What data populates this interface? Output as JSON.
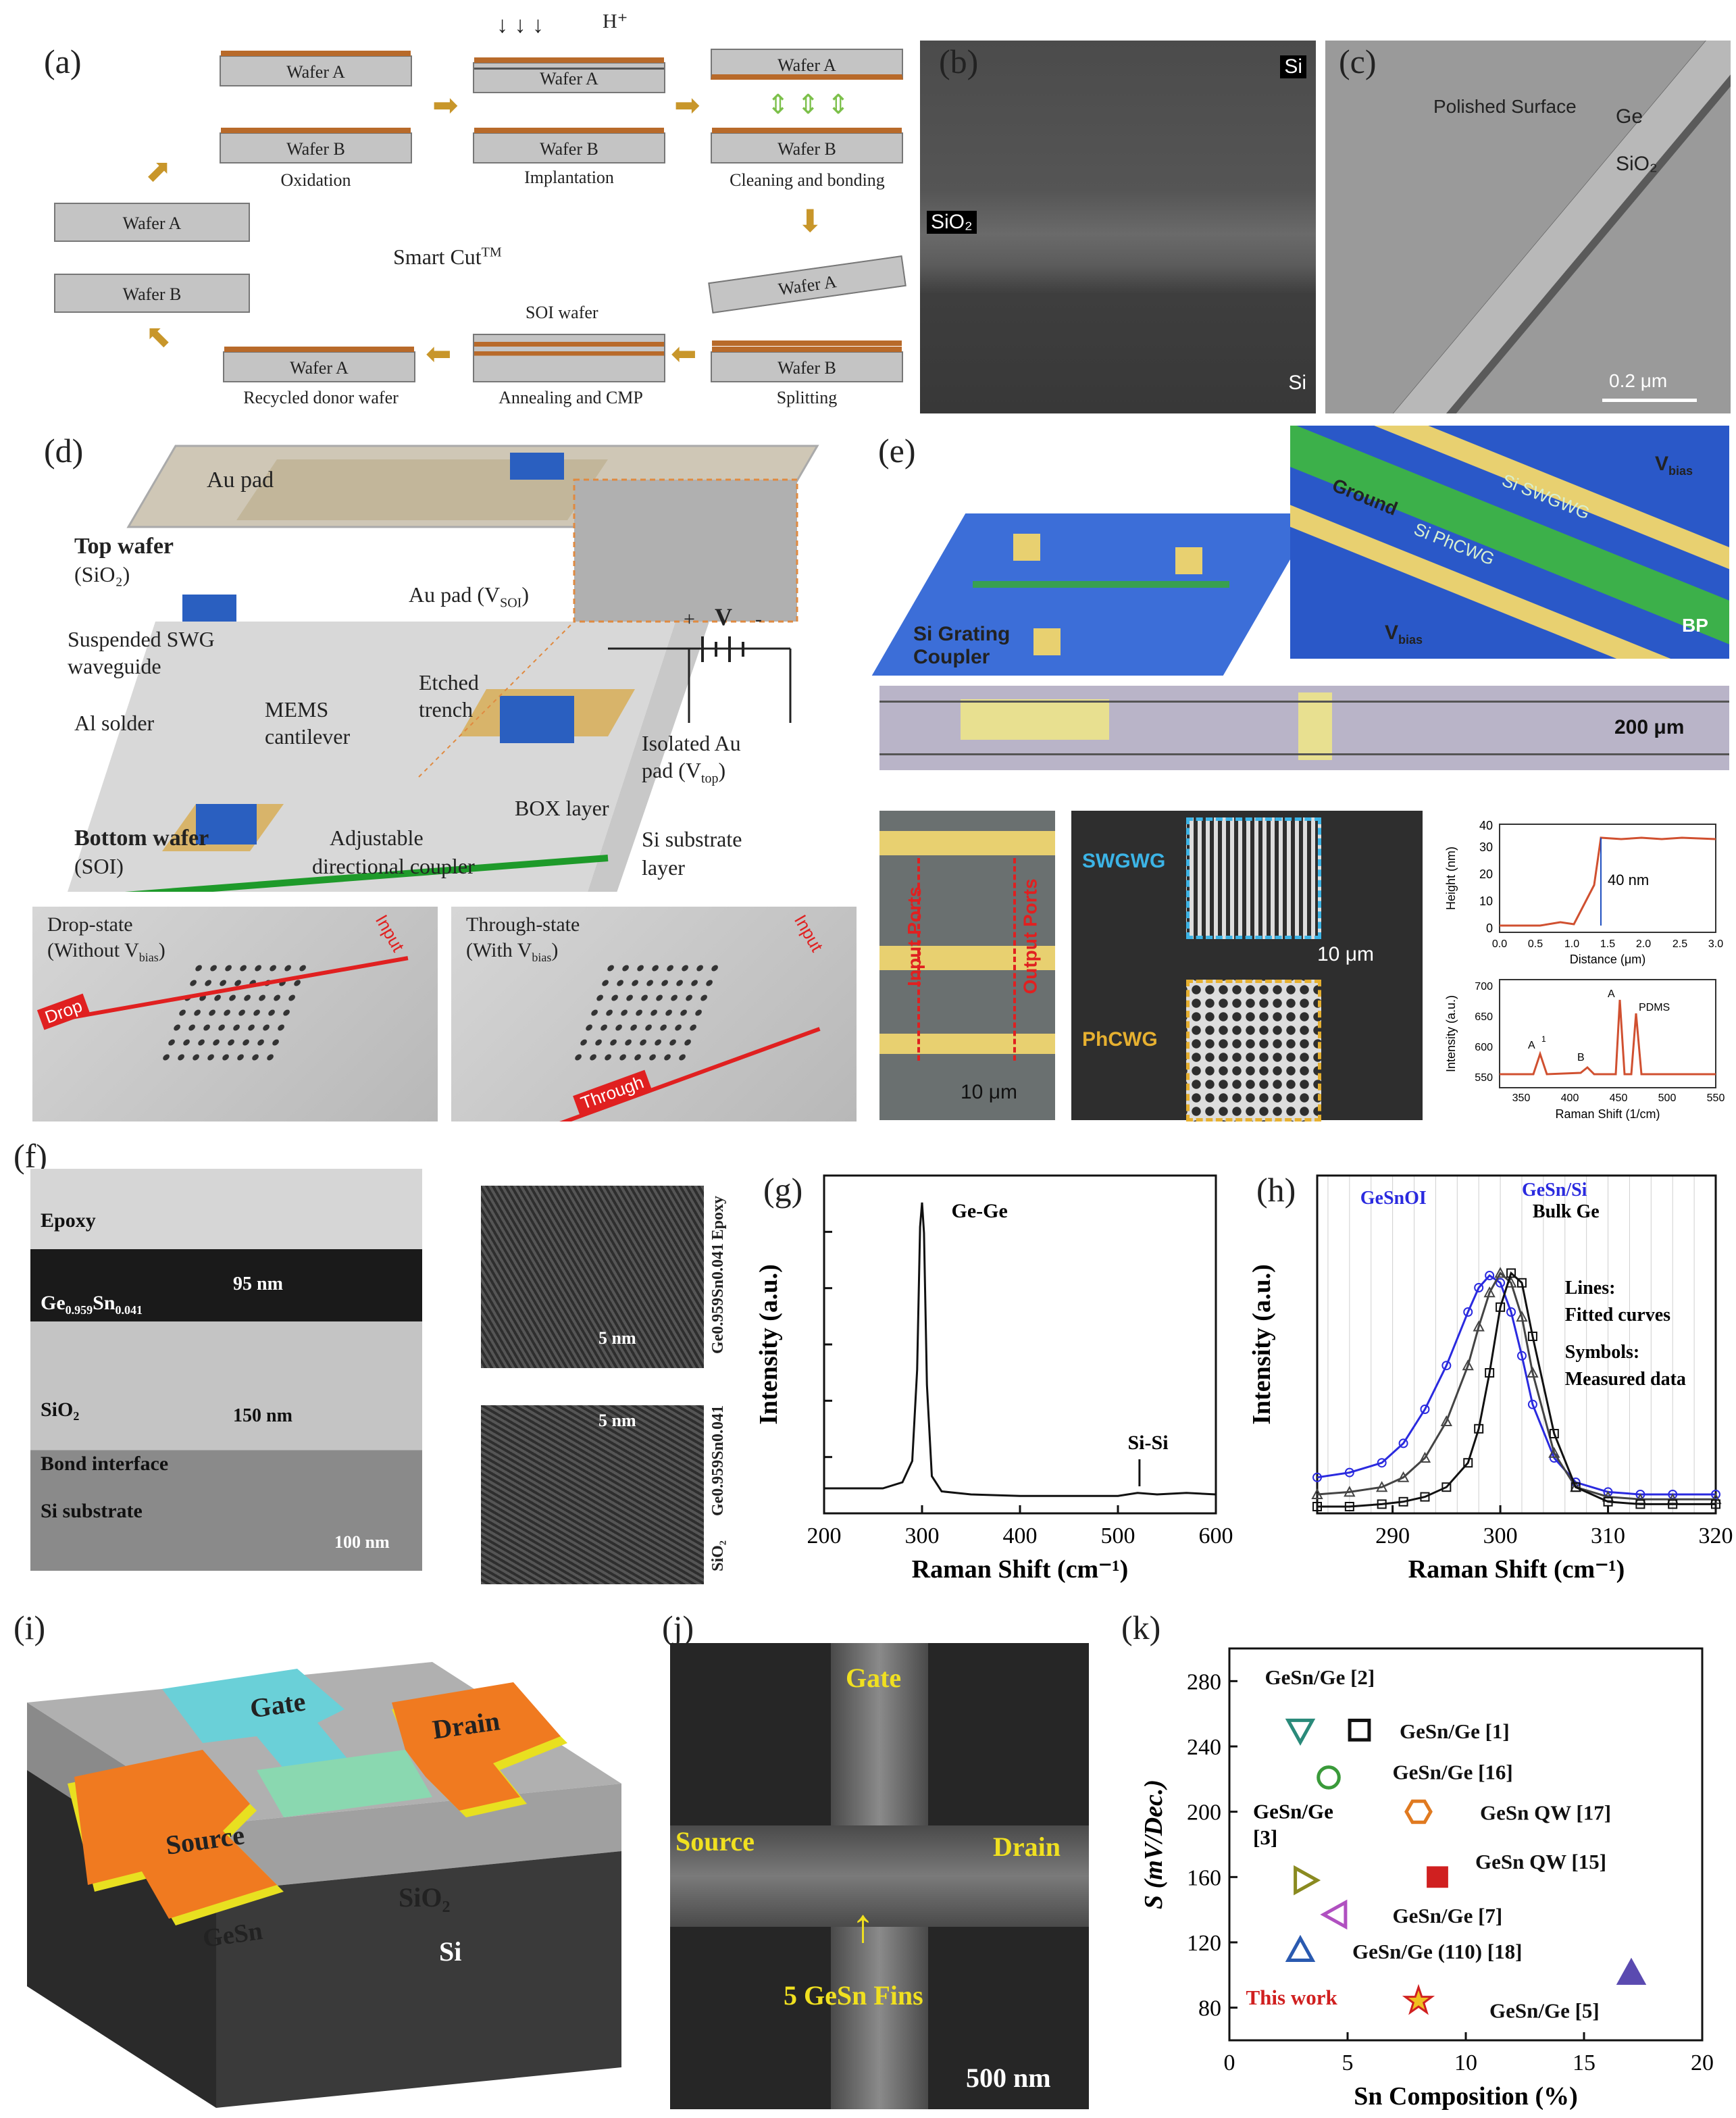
{
  "panels": {
    "a": "(a)",
    "b": "(b)",
    "c": "(c)",
    "d": "(d)",
    "e": "(e)",
    "f": "(f)",
    "g": "(g)",
    "h": "(h)",
    "i": "(i)",
    "j": "(j)",
    "k": "(k)"
  },
  "a": {
    "title": "Smart Cut",
    "tm": "TM",
    "wafer_a": "Wafer A",
    "wafer_b": "Wafer B",
    "h_plus": "H⁺",
    "steps": [
      "Oxidation",
      "Implantation",
      "Cleaning and bonding",
      "Splitting",
      "Annealing and CMP",
      "Recycled donor wafer"
    ],
    "soi": "SOI wafer"
  },
  "b": {
    "si_top": "Si",
    "sio2": "SiO₂",
    "si_bottom": "Si"
  },
  "c": {
    "polished": "Polished Surface",
    "ge": "Ge",
    "sio2": "SiO₂",
    "scale": "0.2 μm"
  },
  "d": {
    "au_pad": "Au pad",
    "top_wafer": "Top wafer",
    "top_wafer_sub": "(SiO₂)",
    "suspended": "Suspended SWG",
    "waveguide": "waveguide",
    "al_solder": "Al solder",
    "mems": "MEMS",
    "cantilever": "cantilever",
    "bottom_wafer": "Bottom wafer",
    "bottom_sub": "(SOI)",
    "adjustable": "Adjustable",
    "coupler": "directional coupler",
    "au_pad_vsoi": "Au pad (V",
    "vsoi_sub": "SOI",
    "etched": "Etched",
    "trench": "trench",
    "isolated": "Isolated Au",
    "pad_vtop": "pad (V",
    "vtop_sub": "top",
    "box": "BOX layer",
    "si_sub": "Si substrate",
    "layer": "layer",
    "v": "V",
    "plus": "+",
    "minus": "-",
    "drop_state": "Drop-state",
    "without": "(Without V",
    "bias": "bias",
    "through_state": "Through-state",
    "with": "(With V",
    "input": "Input",
    "drop": "Drop",
    "through": "Through"
  },
  "e": {
    "grating": "Si Grating",
    "coupler": "Coupler",
    "ground": "Ground",
    "vbias": "V",
    "bias": "bias",
    "swgwg": "Si SWGWG",
    "phcwg": "Si PhCWG",
    "bp": "BP",
    "scale200": "200 μm",
    "input_ports": "Input Ports",
    "output_ports": "Output Ports",
    "scale10a": "10 μm",
    "swgwg_lbl": "SWGWG",
    "phcwg_lbl": "PhCWG",
    "scale10b": "10 μm",
    "height_y": "Height (nm)",
    "height_x": "Distance (μm)",
    "height_ann": "40 nm",
    "height_yticks": [
      "0",
      "10",
      "20",
      "30",
      "40"
    ],
    "height_xticks": [
      "0.0",
      "0.5",
      "1.0",
      "1.5",
      "2.0",
      "2.5",
      "3.0"
    ],
    "raman_y": "Intensity (a.u.)",
    "raman_x": "Raman Shift (1/cm)",
    "raman_yticks": [
      "550",
      "600",
      "650",
      "700"
    ],
    "raman_xticks": [
      "350",
      "400",
      "450",
      "500",
      "550"
    ],
    "peaks": [
      "A",
      "1",
      "g",
      "B",
      "2g",
      "A",
      "2",
      "g",
      "PDMS"
    ]
  },
  "f": {
    "epoxy": "Epoxy",
    "gesn": "Ge",
    "ge_sub": "0.959",
    "sn": "Sn",
    "sn_sub": "0.041",
    "sio2": "SiO₂",
    "bond": "Bond interface",
    "si_sub": "Si substrate",
    "t95": "95 nm",
    "t150": "150 nm",
    "scale": "100 nm",
    "scale5a": "5 nm",
    "scale5b": "5 nm",
    "side_epoxy": "Epoxy",
    "side_gesn": "Ge0.959Sn0.041",
    "side_gesn2": "Ge0.959Sn0.041",
    "side_sio2": "SiO₂"
  },
  "chart_data": [
    {
      "type": "line",
      "title": "",
      "xlabel": "Raman Shift (cm⁻¹)",
      "ylabel": "Intensity (a.u.)",
      "xlim": [
        200,
        600
      ],
      "xticks": [
        "200",
        "300",
        "400",
        "500",
        "600"
      ],
      "annotations": [
        "Ge-Ge",
        "Si-Si"
      ],
      "x": [
        200,
        230,
        260,
        280,
        290,
        295,
        298,
        300,
        302,
        305,
        310,
        320,
        350,
        400,
        450,
        500,
        520,
        540,
        570,
        600
      ],
      "series": [
        {
          "values": [
            0.06,
            0.06,
            0.06,
            0.08,
            0.15,
            0.45,
            0.92,
            1.0,
            0.9,
            0.4,
            0.1,
            0.05,
            0.04,
            0.035,
            0.035,
            0.035,
            0.045,
            0.04,
            0.045,
            0.04
          ]
        }
      ]
    },
    {
      "type": "line",
      "title": "",
      "xlabel": "Raman Shift (cm⁻¹)",
      "ylabel": "Intensity (a.u.)",
      "xlim": [
        283,
        320
      ],
      "xticks": [
        "290",
        "300",
        "310",
        "320"
      ],
      "annotations": [
        "GeSnOI",
        "GeSn/Si",
        "Bulk Ge",
        "Lines:",
        "Fitted curves",
        "Symbols:",
        "Measured data"
      ],
      "x": [
        283,
        286,
        289,
        291,
        293,
        295,
        297,
        298,
        299,
        300,
        301,
        302,
        303,
        305,
        307,
        310,
        313,
        316,
        320
      ],
      "series": [
        {
          "name": "GeSnOI",
          "color": "#2a2adf",
          "values": [
            0.12,
            0.14,
            0.18,
            0.26,
            0.4,
            0.58,
            0.8,
            0.9,
            0.95,
            0.92,
            0.8,
            0.62,
            0.42,
            0.2,
            0.1,
            0.06,
            0.05,
            0.05,
            0.05
          ]
        },
        {
          "name": "GeSn/Si",
          "color": "#444444",
          "values": [
            0.05,
            0.06,
            0.08,
            0.12,
            0.2,
            0.35,
            0.58,
            0.74,
            0.88,
            0.96,
            0.92,
            0.78,
            0.55,
            0.22,
            0.08,
            0.04,
            0.03,
            0.03,
            0.03
          ]
        },
        {
          "name": "Bulk Ge",
          "color": "#111111",
          "values": [
            0.0,
            0.0,
            0.01,
            0.02,
            0.04,
            0.08,
            0.18,
            0.32,
            0.55,
            0.82,
            0.96,
            0.92,
            0.7,
            0.3,
            0.08,
            0.02,
            0.01,
            0.01,
            0.01
          ]
        }
      ]
    },
    {
      "type": "scatter",
      "title": "",
      "xlabel": "Sn Composition (%)",
      "ylabel": "S (mV/Dec.)",
      "xlim": [
        0,
        20
      ],
      "ylim": [
        60,
        300
      ],
      "xticks": [
        "0",
        "5",
        "10",
        "15",
        "20"
      ],
      "yticks": [
        "80",
        "120",
        "160",
        "200",
        "240",
        "280"
      ],
      "points": [
        {
          "label": "GeSn/Ge [2]",
          "x": 3,
          "y": 250,
          "marker": "triangle-down",
          "color": "#2a8a7a"
        },
        {
          "label": "GeSn/Ge [1]",
          "x": 5.5,
          "y": 250,
          "marker": "square",
          "color": "#111111"
        },
        {
          "label": "GeSn/Ge [16]",
          "x": 4.2,
          "y": 221,
          "marker": "circle",
          "color": "#3a9a3a"
        },
        {
          "label": "GeSn QW [17]",
          "x": 8,
          "y": 200,
          "marker": "hexagon",
          "color": "#e07a20"
        },
        {
          "label": "GeSn/Ge [3]",
          "x": 3.2,
          "y": 158,
          "marker": "triangle-right",
          "color": "#8a8a20"
        },
        {
          "label": "GeSn QW [15]",
          "x": 8.8,
          "y": 160,
          "marker": "square-plus",
          "color": "#d02020"
        },
        {
          "label": "GeSn/Ge [7]",
          "x": 4.5,
          "y": 137,
          "marker": "triangle-left",
          "color": "#b050c0"
        },
        {
          "label": "GeSn/Ge (110) [18]",
          "x": 3,
          "y": 115,
          "marker": "triangle-up",
          "color": "#2a5ab0"
        },
        {
          "label": "This work",
          "x": 8,
          "y": 84,
          "marker": "star",
          "color": "#f0c020"
        },
        {
          "label": "GeSn/Ge [5]",
          "x": 17,
          "y": 101,
          "marker": "triangle-up",
          "color": "#5a4ab0"
        }
      ]
    }
  ],
  "i": {
    "gate": "Gate",
    "source": "Source",
    "drain": "Drain",
    "gesn": "GeSn",
    "sio2": "SiO₂",
    "si": "Si"
  },
  "j": {
    "gate": "Gate",
    "source": "Source",
    "drain": "Drain",
    "fins": "5 GeSn Fins",
    "scale": "500 nm"
  },
  "k_labels": {
    "gesn_ge_3a": "GeSn/Ge",
    "gesn_ge_3b": "[3]"
  }
}
